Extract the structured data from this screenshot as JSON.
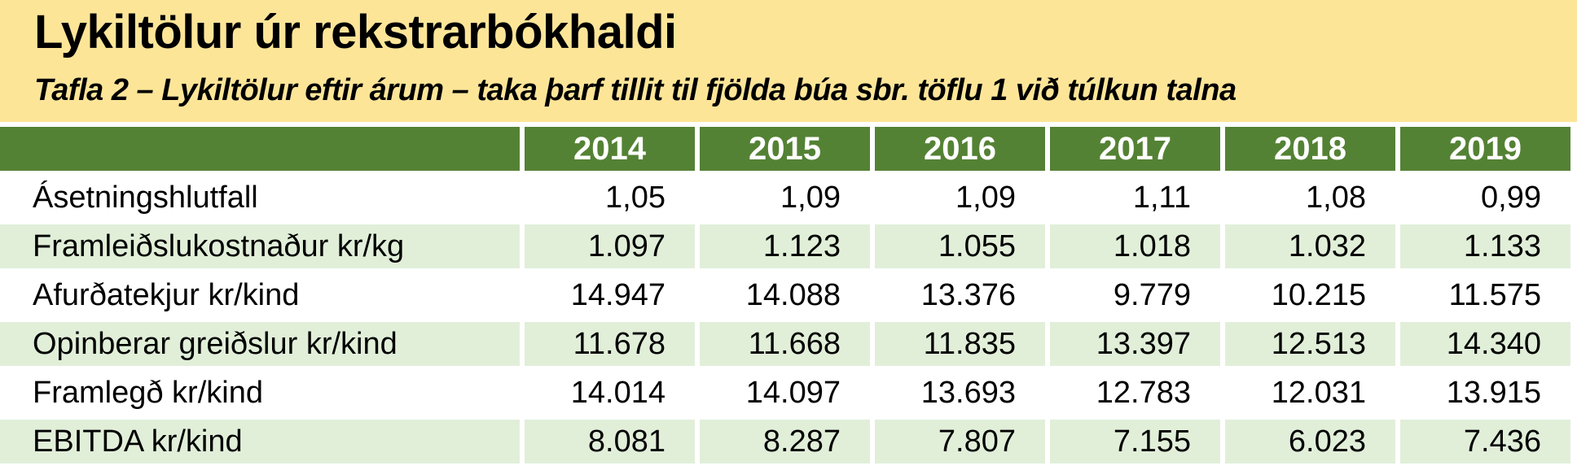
{
  "header": {
    "title": "Lykiltölur úr rekstrarbókhaldi",
    "subtitle": "Tafla 2 – Lykiltölur eftir árum – taka þarf tillit til fjölda búa sbr. töflu 1 við túlkun talna"
  },
  "table": {
    "columns": [
      "",
      "2014",
      "2015",
      "2016",
      "2017",
      "2018",
      "2019"
    ],
    "rows": [
      {
        "label": "Ásetningshlutfall",
        "values": [
          "1,05",
          "1,09",
          "1,09",
          "1,11",
          "1,08",
          "0,99"
        ]
      },
      {
        "label": "Framleiðslukostnaður kr/kg",
        "values": [
          "1.097",
          "1.123",
          "1.055",
          "1.018",
          "1.032",
          "1.133"
        ]
      },
      {
        "label": "Afurðatekjur kr/kind",
        "values": [
          "14.947",
          "14.088",
          "13.376",
          "9.779",
          "10.215",
          "11.575"
        ]
      },
      {
        "label": "Opinberar greiðslur kr/kind",
        "values": [
          "11.678",
          "11.668",
          "11.835",
          "13.397",
          "12.513",
          "14.340"
        ]
      },
      {
        "label": "Framlegð kr/kind",
        "values": [
          "14.014",
          "14.097",
          "13.693",
          "12.783",
          "12.031",
          "13.915"
        ]
      },
      {
        "label": "EBITDA kr/kind",
        "values": [
          "8.081",
          "8.287",
          "7.807",
          "7.155",
          "6.023",
          "7.436"
        ]
      }
    ]
  },
  "colors": {
    "header_background": "#fde598",
    "table_header_background": "#548234",
    "table_header_text": "#ffffff",
    "alt_row_background": "#e1efd9"
  }
}
